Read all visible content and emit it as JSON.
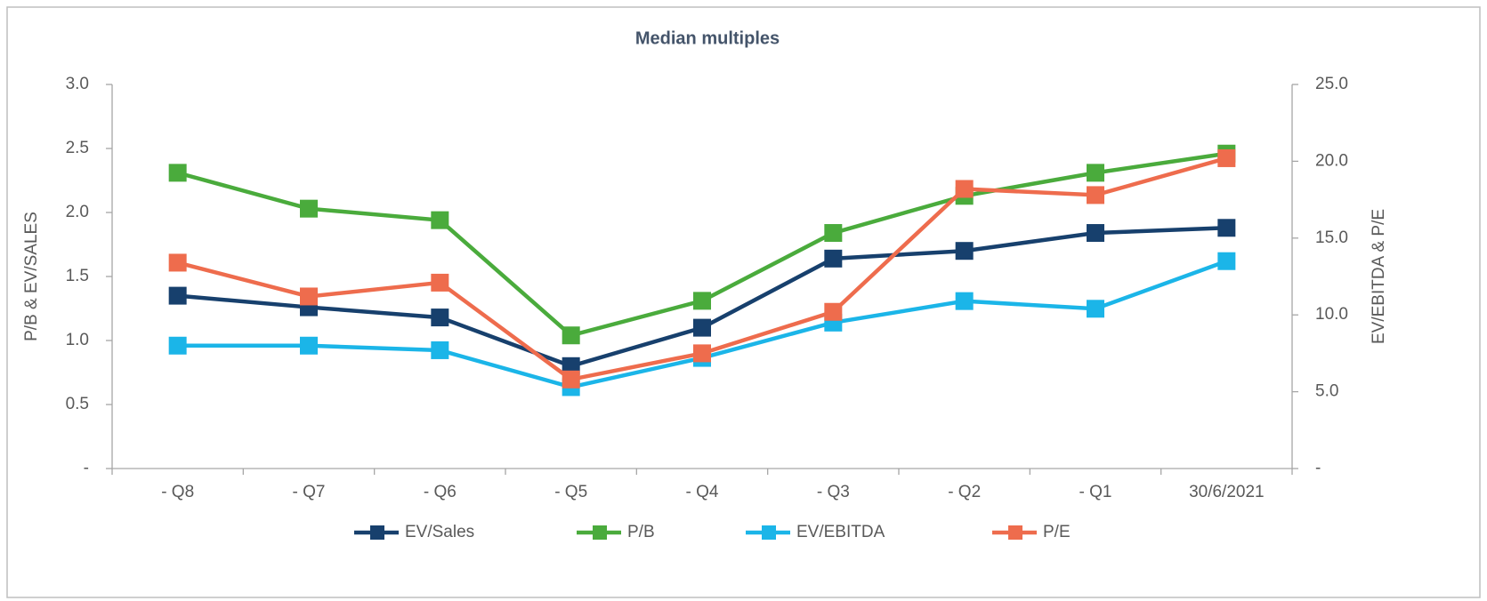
{
  "chart_data": {
    "type": "line",
    "title": "Median multiples",
    "y_label": "P/B & EV/SALES",
    "y2_label": "EV/EBITDA & P/E",
    "categories": [
      "- Q8",
      "- Q7",
      "- Q6",
      "- Q5",
      "- Q4",
      "- Q3",
      "- Q2",
      "- Q1",
      "30/6/2021"
    ],
    "ylim": [
      0,
      3.0
    ],
    "yticks": [
      {
        "value": 0,
        "label": "-"
      },
      {
        "value": 0.5,
        "label": "0.5"
      },
      {
        "value": 1.0,
        "label": "1.0"
      },
      {
        "value": 1.5,
        "label": "1.5"
      },
      {
        "value": 2.0,
        "label": "2.0"
      },
      {
        "value": 2.5,
        "label": "2.5"
      },
      {
        "value": 3.0,
        "label": "3.0"
      }
    ],
    "y2lim": [
      0,
      25.0
    ],
    "y2ticks": [
      {
        "value": 0,
        "label": "-"
      },
      {
        "value": 5.0,
        "label": "5.0"
      },
      {
        "value": 10.0,
        "label": "10.0"
      },
      {
        "value": 15.0,
        "label": "15.0"
      },
      {
        "value": 20.0,
        "label": "20.0"
      },
      {
        "value": 25.0,
        "label": "25.0"
      }
    ],
    "grid": false,
    "legend": "bottom",
    "series": [
      {
        "name": "EV/Sales",
        "color": "#17406d",
        "values": [
          1.35,
          1.26,
          1.18,
          0.8,
          1.1,
          1.64,
          1.7,
          1.84,
          1.88
        ]
      },
      {
        "name": "P/B",
        "color": "#4aab3c",
        "values": [
          2.31,
          2.03,
          1.94,
          1.04,
          1.31,
          1.84,
          2.13,
          2.31,
          2.46
        ]
      },
      {
        "name": "EV/EBITDA",
        "color": "#1bb5e8",
        "axis": "y2",
        "values": [
          8.0,
          8.0,
          7.7,
          5.3,
          7.2,
          9.5,
          10.9,
          10.4,
          13.5
        ]
      },
      {
        "name": "P/E",
        "color": "#ee6c4d",
        "axis": "y2",
        "values": [
          13.4,
          11.2,
          12.1,
          5.8,
          7.5,
          10.2,
          18.2,
          17.8,
          20.2
        ]
      }
    ]
  }
}
